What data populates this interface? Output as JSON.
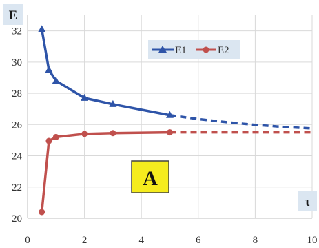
{
  "chart_data": {
    "type": "line",
    "xlabel": "τ",
    "ylabel": "E",
    "xlim": [
      0,
      10
    ],
    "ylim": [
      20,
      33
    ],
    "x_ticks": [
      "0",
      "2",
      "4",
      "6",
      "8",
      "10"
    ],
    "y_ticks": [
      "20",
      "22",
      "24",
      "26",
      "28",
      "30",
      "32"
    ],
    "grid": true,
    "legend_position": "top-center",
    "panel_label": "A",
    "series": [
      {
        "name": "E1",
        "color": "#2e54a8",
        "marker": "triangle",
        "x": [
          0.5,
          0.75,
          1,
          2,
          3,
          5
        ],
        "y": [
          32.1,
          29.5,
          28.8,
          27.7,
          27.3,
          26.6
        ],
        "extrapolated": {
          "x": [
            5,
            6,
            7,
            8,
            9,
            10
          ],
          "y": [
            26.6,
            26.35,
            26.15,
            25.98,
            25.85,
            25.75
          ]
        }
      },
      {
        "name": "E2",
        "color": "#c0504d",
        "marker": "circle",
        "x": [
          0.5,
          0.75,
          1,
          2,
          3,
          5
        ],
        "y": [
          20.4,
          24.95,
          25.2,
          25.4,
          25.45,
          25.5
        ],
        "extrapolated": {
          "x": [
            5,
            10
          ],
          "y": [
            25.5,
            25.5
          ]
        }
      }
    ]
  }
}
